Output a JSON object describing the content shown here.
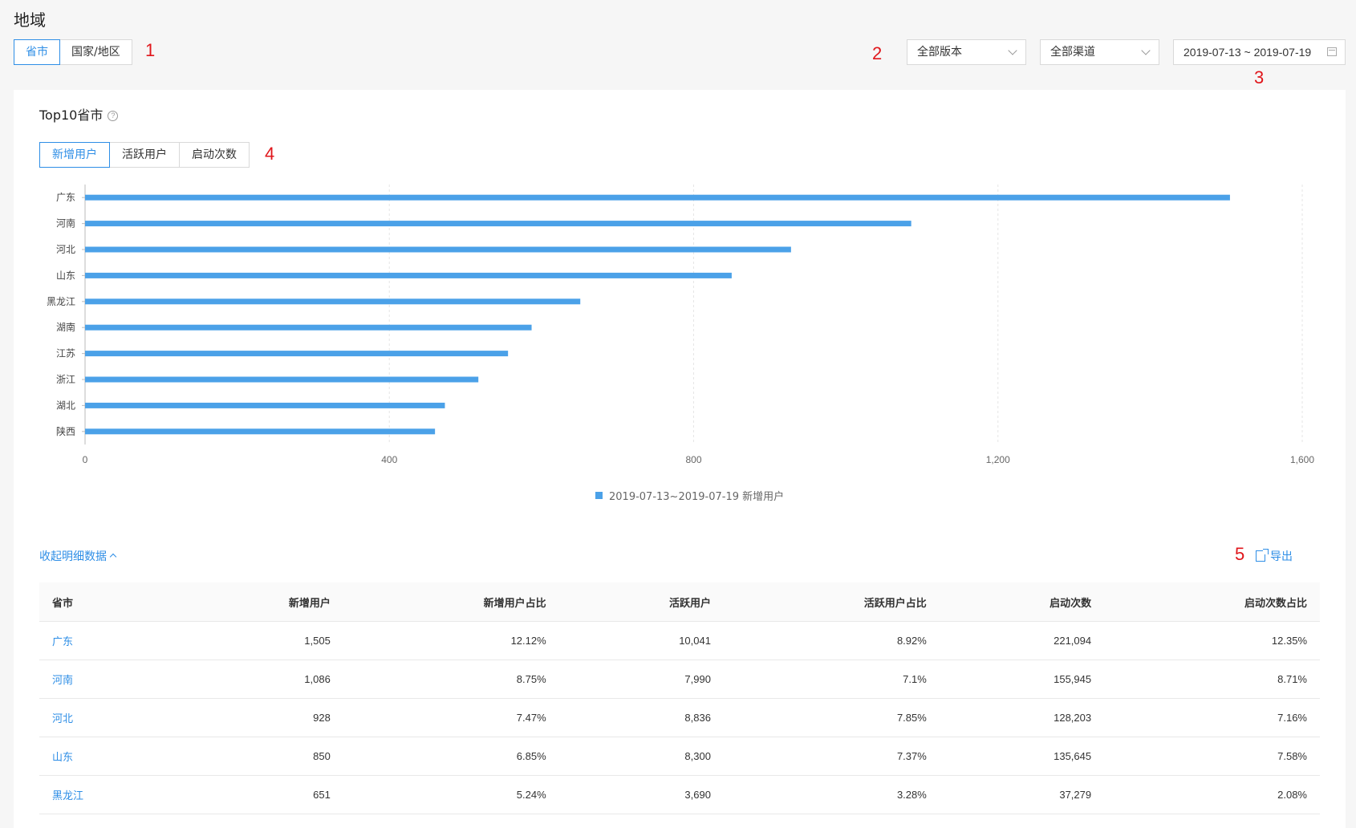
{
  "page": {
    "title": "地域"
  },
  "region_tabs": [
    {
      "label": "省市",
      "active": true
    },
    {
      "label": "国家/地区",
      "active": false
    }
  ],
  "markers": {
    "m1": "1",
    "m2": "2",
    "m3": "3",
    "m4": "4",
    "m5": "5"
  },
  "filters": {
    "version": "全部版本",
    "channel": "全部渠道",
    "date_range": "2019-07-13 ~ 2019-07-19"
  },
  "card": {
    "title": "Top10省市"
  },
  "metric_tabs": [
    {
      "label": "新增用户",
      "active": true
    },
    {
      "label": "活跃用户",
      "active": false
    },
    {
      "label": "启动次数",
      "active": false
    }
  ],
  "chart_data": {
    "type": "bar",
    "orientation": "horizontal",
    "categories": [
      "广东",
      "河南",
      "河北",
      "山东",
      "黑龙江",
      "湖南",
      "江苏",
      "浙江",
      "湖北",
      "陕西"
    ],
    "series": [
      {
        "name": "2019-07-13~2019-07-19 新增用户",
        "values": [
          1505,
          1086,
          928,
          850,
          651,
          587,
          556,
          517,
          473,
          460
        ]
      }
    ],
    "xticks": [
      "0",
      "400",
      "800",
      "1,200",
      "1,600"
    ],
    "xlim": [
      0,
      1600
    ],
    "grid": true,
    "legend": "bottom-center",
    "color": "#4ba1e8"
  },
  "detail": {
    "collapse_label": "收起明细数据",
    "export_label": "导出",
    "columns": [
      "省市",
      "新增用户",
      "新增用户占比",
      "活跃用户",
      "活跃用户占比",
      "启动次数",
      "启动次数占比"
    ],
    "rows": [
      [
        "广东",
        "1,505",
        "12.12%",
        "10,041",
        "8.92%",
        "221,094",
        "12.35%"
      ],
      [
        "河南",
        "1,086",
        "8.75%",
        "7,990",
        "7.1%",
        "155,945",
        "8.71%"
      ],
      [
        "河北",
        "928",
        "7.47%",
        "8,836",
        "7.85%",
        "128,203",
        "7.16%"
      ],
      [
        "山东",
        "850",
        "6.85%",
        "8,300",
        "7.37%",
        "135,645",
        "7.58%"
      ],
      [
        "黑龙江",
        "651",
        "5.24%",
        "3,690",
        "3.28%",
        "37,279",
        "2.08%"
      ]
    ]
  }
}
